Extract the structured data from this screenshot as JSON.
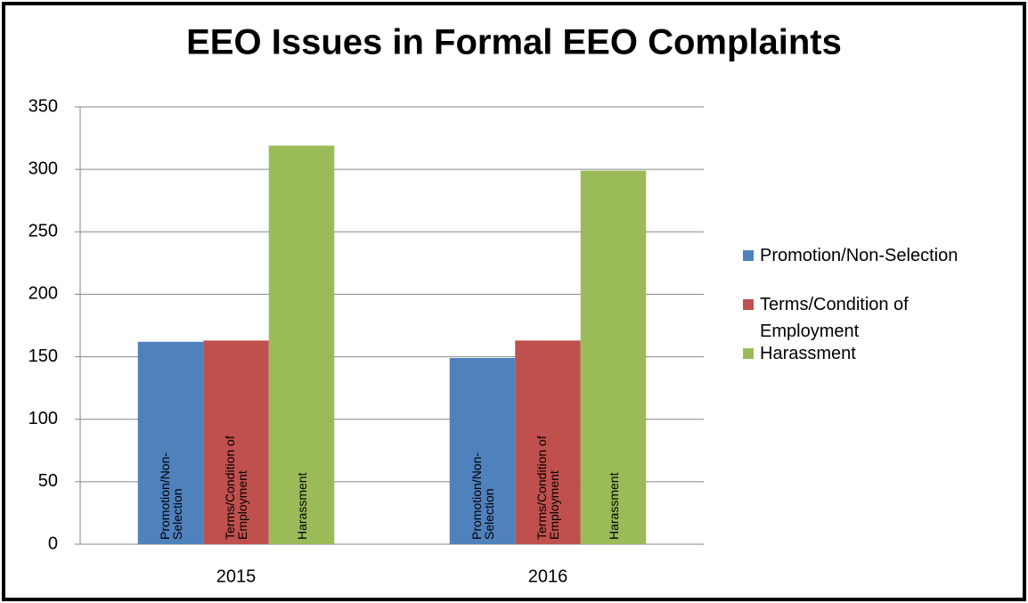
{
  "chart_data": {
    "type": "bar",
    "title": "EEO Issues in Formal EEO Complaints",
    "categories": [
      "2015",
      "2016"
    ],
    "series": [
      {
        "name": "Promotion/Non-Selection",
        "color": "#4f81bd",
        "values": [
          162,
          149
        ]
      },
      {
        "name": "Terms/Condition of Employment",
        "color": "#c0504d",
        "values": [
          163,
          163
        ]
      },
      {
        "name": "Harassment",
        "color": "#9bbb59",
        "values": [
          319,
          299
        ]
      }
    ],
    "ylim": [
      0,
      350
    ],
    "yticks": [
      0,
      50,
      100,
      150,
      200,
      250,
      300,
      350
    ],
    "grid": true,
    "legend": "right"
  }
}
